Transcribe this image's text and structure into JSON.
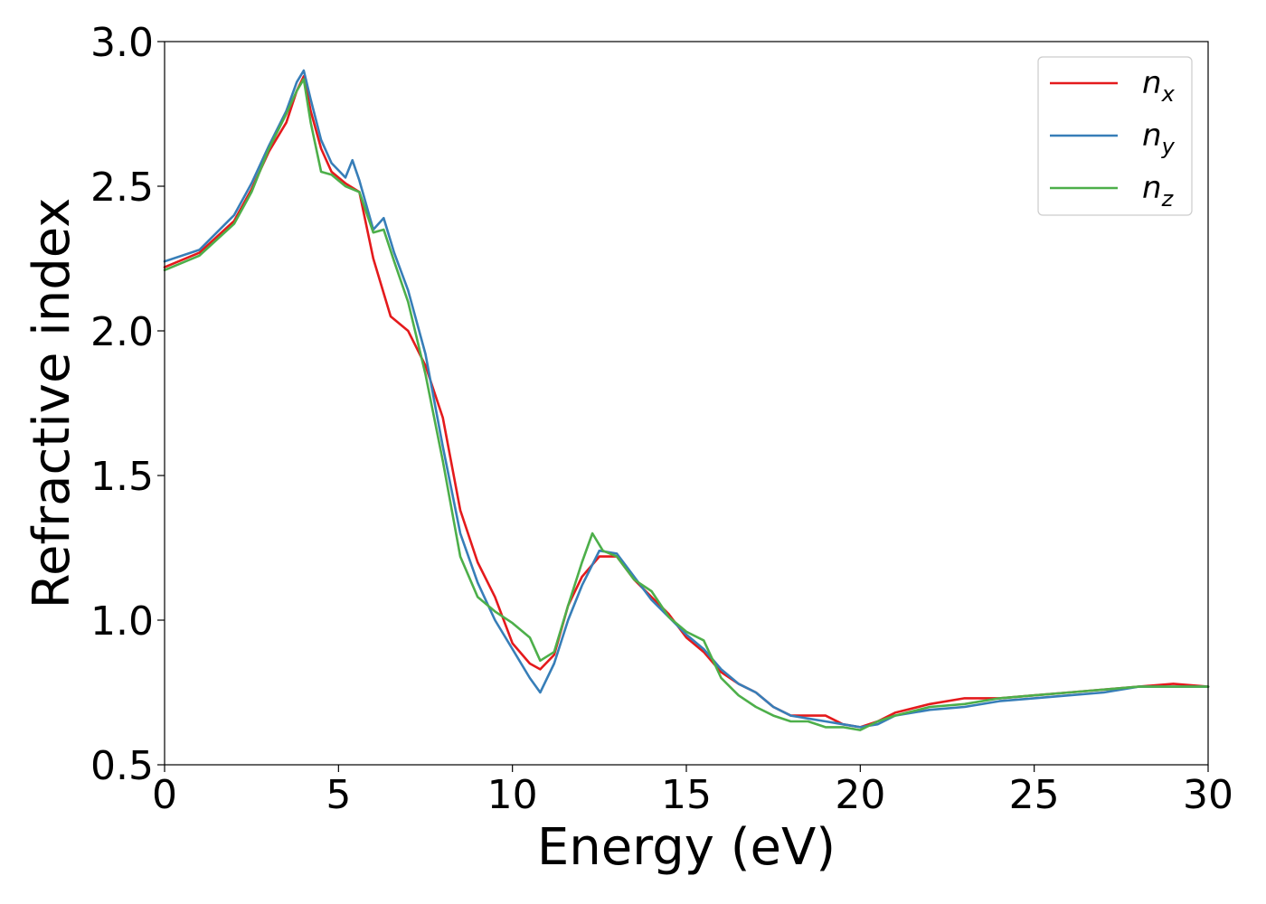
{
  "chart_data": {
    "type": "line",
    "title": "",
    "xlabel": "Energy (eV)",
    "ylabel": "Refractive index",
    "xlim": [
      0,
      30
    ],
    "ylim": [
      0.5,
      3.0
    ],
    "xticks": [
      0,
      5,
      10,
      15,
      20,
      25,
      30
    ],
    "xtick_labels": [
      "0",
      "5",
      "10",
      "15",
      "20",
      "25",
      "30"
    ],
    "yticks": [
      0.5,
      1.0,
      1.5,
      2.0,
      2.5,
      3.0
    ],
    "ytick_labels": [
      "0.5",
      "1.0",
      "1.5",
      "2.0",
      "2.5",
      "3.0"
    ],
    "grid": false,
    "legend_position": "top-right",
    "series": [
      {
        "name": "n",
        "subscript": "x",
        "color": "#e41a1c",
        "x": [
          0,
          1,
          2,
          2.5,
          3,
          3.5,
          3.8,
          4.0,
          4.2,
          4.5,
          4.8,
          5.2,
          5.6,
          6.0,
          6.5,
          7.0,
          7.5,
          8.0,
          8.5,
          9.0,
          9.5,
          10.0,
          10.5,
          10.8,
          11.2,
          11.6,
          12.0,
          12.5,
          13.0,
          13.5,
          14.0,
          14.5,
          15.0,
          15.5,
          16.0,
          16.5,
          17.0,
          17.5,
          18.0,
          18.5,
          19.0,
          19.5,
          20.0,
          20.5,
          21.0,
          22.0,
          23.0,
          24.0,
          25.0,
          26.0,
          27.0,
          28.0,
          29.0,
          30.0
        ],
        "y": [
          2.22,
          2.27,
          2.38,
          2.49,
          2.62,
          2.72,
          2.83,
          2.88,
          2.76,
          2.63,
          2.55,
          2.51,
          2.48,
          2.25,
          2.05,
          2.0,
          1.88,
          1.7,
          1.38,
          1.2,
          1.08,
          0.92,
          0.85,
          0.83,
          0.88,
          1.05,
          1.15,
          1.22,
          1.22,
          1.14,
          1.08,
          1.02,
          0.94,
          0.89,
          0.82,
          0.78,
          0.75,
          0.7,
          0.67,
          0.67,
          0.67,
          0.64,
          0.63,
          0.65,
          0.68,
          0.71,
          0.73,
          0.73,
          0.74,
          0.75,
          0.76,
          0.77,
          0.78,
          0.77
        ]
      },
      {
        "name": "n",
        "subscript": "y",
        "color": "#377eb8",
        "x": [
          0,
          1,
          2,
          2.5,
          3,
          3.5,
          3.8,
          4.0,
          4.2,
          4.5,
          4.8,
          5.2,
          5.4,
          5.6,
          6.0,
          6.3,
          6.6,
          7.0,
          7.5,
          8.0,
          8.5,
          9.0,
          9.5,
          10.0,
          10.5,
          10.8,
          11.2,
          11.6,
          12.0,
          12.5,
          13.0,
          13.5,
          14.0,
          14.5,
          15.0,
          15.5,
          16.0,
          16.5,
          17.0,
          17.5,
          18.0,
          18.5,
          19.0,
          19.5,
          20.0,
          20.5,
          21.0,
          22.0,
          23.0,
          24.0,
          25.0,
          26.0,
          27.0,
          28.0,
          29.0,
          30.0
        ],
        "y": [
          2.24,
          2.28,
          2.4,
          2.51,
          2.64,
          2.76,
          2.86,
          2.9,
          2.8,
          2.66,
          2.58,
          2.53,
          2.59,
          2.52,
          2.35,
          2.39,
          2.27,
          2.14,
          1.92,
          1.6,
          1.3,
          1.13,
          1.0,
          0.9,
          0.8,
          0.75,
          0.85,
          1.0,
          1.12,
          1.24,
          1.23,
          1.15,
          1.07,
          1.01,
          0.95,
          0.9,
          0.83,
          0.78,
          0.75,
          0.7,
          0.67,
          0.66,
          0.65,
          0.64,
          0.63,
          0.64,
          0.67,
          0.69,
          0.7,
          0.72,
          0.73,
          0.74,
          0.75,
          0.77,
          0.77,
          0.77
        ]
      },
      {
        "name": "n",
        "subscript": "z",
        "color": "#4daf4a",
        "x": [
          0,
          1,
          2,
          2.5,
          3,
          3.5,
          3.8,
          4.0,
          4.2,
          4.5,
          4.8,
          5.2,
          5.6,
          6.0,
          6.3,
          6.6,
          7.0,
          7.5,
          8.0,
          8.5,
          9.0,
          9.5,
          10.0,
          10.5,
          10.8,
          11.2,
          11.6,
          12.0,
          12.3,
          12.6,
          13.0,
          13.5,
          14.0,
          14.5,
          15.0,
          15.5,
          16.0,
          16.5,
          17.0,
          17.5,
          18.0,
          18.5,
          19.0,
          19.5,
          20.0,
          20.5,
          21.0,
          22.0,
          23.0,
          24.0,
          25.0,
          26.0,
          27.0,
          28.0,
          29.0,
          30.0
        ],
        "y": [
          2.21,
          2.26,
          2.37,
          2.48,
          2.63,
          2.75,
          2.83,
          2.87,
          2.72,
          2.55,
          2.54,
          2.5,
          2.48,
          2.34,
          2.35,
          2.24,
          2.1,
          1.85,
          1.55,
          1.22,
          1.08,
          1.03,
          0.99,
          0.94,
          0.86,
          0.89,
          1.05,
          1.2,
          1.3,
          1.24,
          1.22,
          1.14,
          1.1,
          1.01,
          0.96,
          0.93,
          0.8,
          0.74,
          0.7,
          0.67,
          0.65,
          0.65,
          0.63,
          0.63,
          0.62,
          0.65,
          0.67,
          0.7,
          0.71,
          0.73,
          0.74,
          0.75,
          0.76,
          0.77,
          0.77,
          0.77
        ]
      }
    ]
  }
}
